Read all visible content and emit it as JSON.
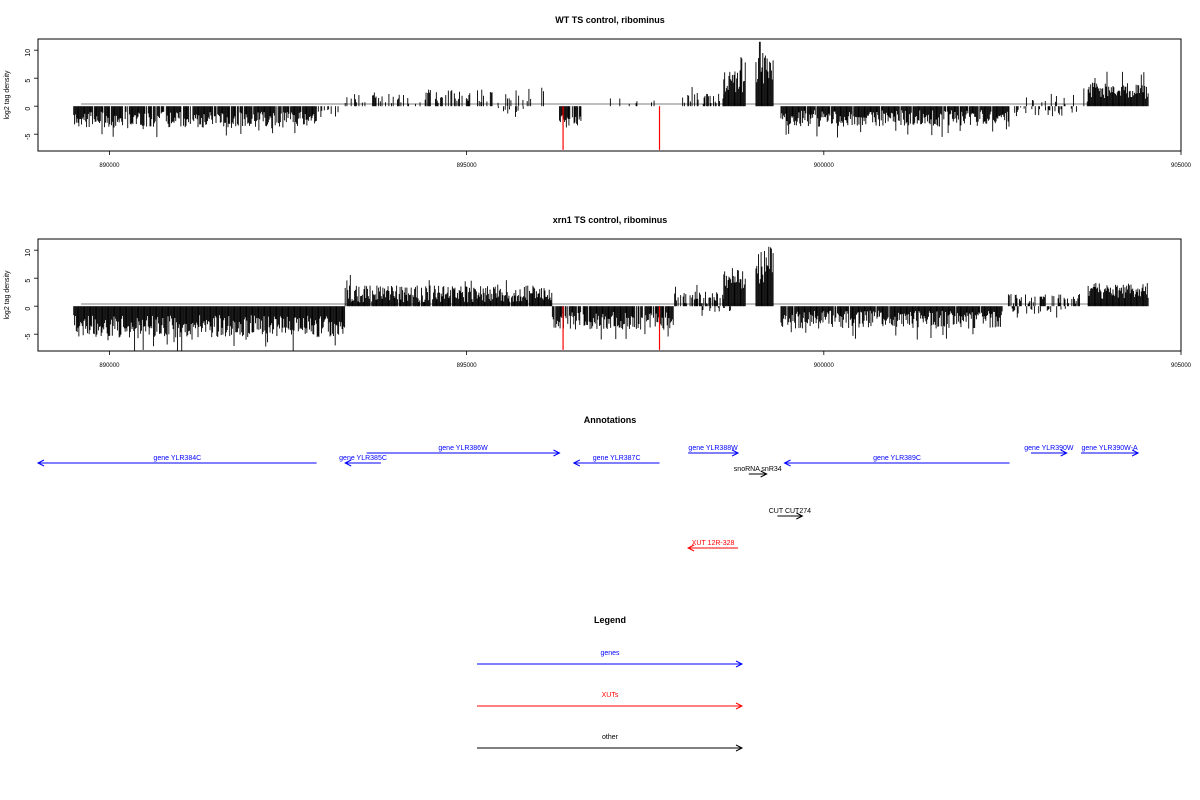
{
  "chart_data": [
    {
      "type": "bar",
      "title": "WT TS control, ribominus",
      "ylabel": "log2 tag density",
      "xlabel": "",
      "xlim": [
        889000,
        905000
      ],
      "ylim": [
        -8,
        12
      ],
      "xticks": [
        890000,
        895000,
        900000,
        905000
      ],
      "yticks": [
        -5,
        0,
        5,
        10
      ],
      "segments": [
        {
          "from": 889500,
          "to": 892900,
          "sign": -1,
          "mean": 2.4,
          "amp": 1.4,
          "density": 0.9
        },
        {
          "from": 892900,
          "to": 893300,
          "sign": -1,
          "mean": 1.2,
          "amp": 0.8,
          "density": 0.25
        },
        {
          "from": 893300,
          "to": 894300,
          "sign": 1,
          "mean": 1.3,
          "amp": 0.9,
          "density": 0.3
        },
        {
          "from": 894300,
          "to": 896100,
          "sign": 1,
          "mean": 1.8,
          "amp": 1.3,
          "density": 0.3
        },
        {
          "from": 895300,
          "to": 895800,
          "sign": -1,
          "mean": 0.8,
          "amp": 0.6,
          "density": 0.12
        },
        {
          "from": 896300,
          "to": 896600,
          "sign": -1,
          "mean": 2.5,
          "amp": 1.0,
          "density": 0.7
        },
        {
          "from": 897000,
          "to": 897700,
          "sign": 1,
          "mean": 0.9,
          "amp": 0.5,
          "density": 0.12
        },
        {
          "from": 898000,
          "to": 898600,
          "sign": 1,
          "mean": 1.4,
          "amp": 1.0,
          "density": 0.5
        },
        {
          "from": 898600,
          "to": 898900,
          "sign": 1,
          "mean": 4.5,
          "amp": 2.0,
          "density": 1.0
        },
        {
          "from": 899050,
          "to": 899300,
          "sign": 1,
          "mean": 7.5,
          "amp": 3.5,
          "density": 1.0
        },
        {
          "from": 899400,
          "to": 902600,
          "sign": -1,
          "mean": 2.2,
          "amp": 1.5,
          "density": 0.9
        },
        {
          "from": 902600,
          "to": 903600,
          "sign": -1,
          "mean": 1.0,
          "amp": 0.8,
          "density": 0.25
        },
        {
          "from": 902800,
          "to": 903700,
          "sign": 1,
          "mean": 1.2,
          "amp": 0.9,
          "density": 0.2
        },
        {
          "from": 903700,
          "to": 904550,
          "sign": 1,
          "mean": 2.8,
          "amp": 1.5,
          "density": 1.0
        }
      ],
      "highlights": [
        {
          "x": 896350,
          "y": -7.8
        },
        {
          "x": 897700,
          "y": -7.8
        }
      ]
    },
    {
      "type": "bar",
      "title": "xrn1 TS control, ribominus",
      "ylabel": "log2 tag density",
      "xlabel": "",
      "xlim": [
        889000,
        905000
      ],
      "ylim": [
        -8,
        12
      ],
      "xticks": [
        890000,
        895000,
        900000,
        905000
      ],
      "yticks": [
        -5,
        0,
        5,
        10
      ],
      "segments": [
        {
          "from": 889500,
          "to": 893300,
          "sign": -1,
          "mean": 3.6,
          "amp": 2.0,
          "density": 1.0
        },
        {
          "from": 893300,
          "to": 896200,
          "sign": 1,
          "mean": 2.2,
          "amp": 1.5,
          "density": 0.95
        },
        {
          "from": 896200,
          "to": 897900,
          "sign": -1,
          "mean": 2.6,
          "amp": 1.6,
          "density": 0.9
        },
        {
          "from": 897900,
          "to": 898600,
          "sign": 1,
          "mean": 1.5,
          "amp": 1.1,
          "density": 0.55
        },
        {
          "from": 898200,
          "to": 898700,
          "sign": -1,
          "mean": 0.8,
          "amp": 0.5,
          "density": 0.2
        },
        {
          "from": 898600,
          "to": 898900,
          "sign": 1,
          "mean": 4.5,
          "amp": 2.0,
          "density": 1.0
        },
        {
          "from": 899050,
          "to": 899300,
          "sign": 1,
          "mean": 7.5,
          "amp": 3.5,
          "density": 1.0
        },
        {
          "from": 899400,
          "to": 902500,
          "sign": -1,
          "mean": 2.4,
          "amp": 1.6,
          "density": 0.95
        },
        {
          "from": 902500,
          "to": 903600,
          "sign": 1,
          "mean": 1.3,
          "amp": 0.9,
          "density": 0.45
        },
        {
          "from": 902600,
          "to": 903400,
          "sign": -1,
          "mean": 1.0,
          "amp": 0.6,
          "density": 0.35
        },
        {
          "from": 903700,
          "to": 904550,
          "sign": 1,
          "mean": 2.8,
          "amp": 1.5,
          "density": 1.0
        }
      ],
      "highlights": [
        {
          "x": 896350,
          "y": -7.8
        },
        {
          "x": 897700,
          "y": -7.8
        }
      ]
    }
  ],
  "annotations": {
    "title": "Annotations",
    "features": [
      {
        "label": "gene YLR384C",
        "start": 888800,
        "end": 892900,
        "strand": "-",
        "color": "#0000ff",
        "row": 1
      },
      {
        "label": "gene YLR385C",
        "start": 893300,
        "end": 893800,
        "strand": "-",
        "color": "#0000ff",
        "row": 1
      },
      {
        "label": "gene YLR386W",
        "start": 893600,
        "end": 896300,
        "strand": "+",
        "color": "#0000ff",
        "row": 0
      },
      {
        "label": "gene YLR387C",
        "start": 896500,
        "end": 897700,
        "strand": "-",
        "color": "#0000ff",
        "row": 1
      },
      {
        "label": "gene YLR388W",
        "start": 898100,
        "end": 898800,
        "strand": "+",
        "color": "#0000ff",
        "row": 0
      },
      {
        "label": "snoRNA snR34",
        "start": 898950,
        "end": 899200,
        "strand": "+",
        "color": "#000000",
        "row": 2
      },
      {
        "label": "gene YLR389C",
        "start": 899450,
        "end": 902600,
        "strand": "-",
        "color": "#0000ff",
        "row": 1
      },
      {
        "label": "gene YLR390W",
        "start": 902900,
        "end": 903400,
        "strand": "+",
        "color": "#0000ff",
        "row": 0
      },
      {
        "label": "gene YLR390W-A",
        "start": 903600,
        "end": 904400,
        "strand": "+",
        "color": "#0000ff",
        "row": 0
      },
      {
        "label": "CUT CUT274",
        "start": 899350,
        "end": 899700,
        "strand": "+",
        "color": "#000000",
        "row": 3
      },
      {
        "label": "XUT 12R-328",
        "start": 898100,
        "end": 898800,
        "strand": "-",
        "color": "#ff0000",
        "row": 4
      }
    ]
  },
  "legend": {
    "title": "Legend",
    "items": [
      {
        "label": "genes",
        "color": "#0000ff"
      },
      {
        "label": "XUTs",
        "color": "#ff0000"
      },
      {
        "label": "other",
        "color": "#000000"
      }
    ]
  }
}
